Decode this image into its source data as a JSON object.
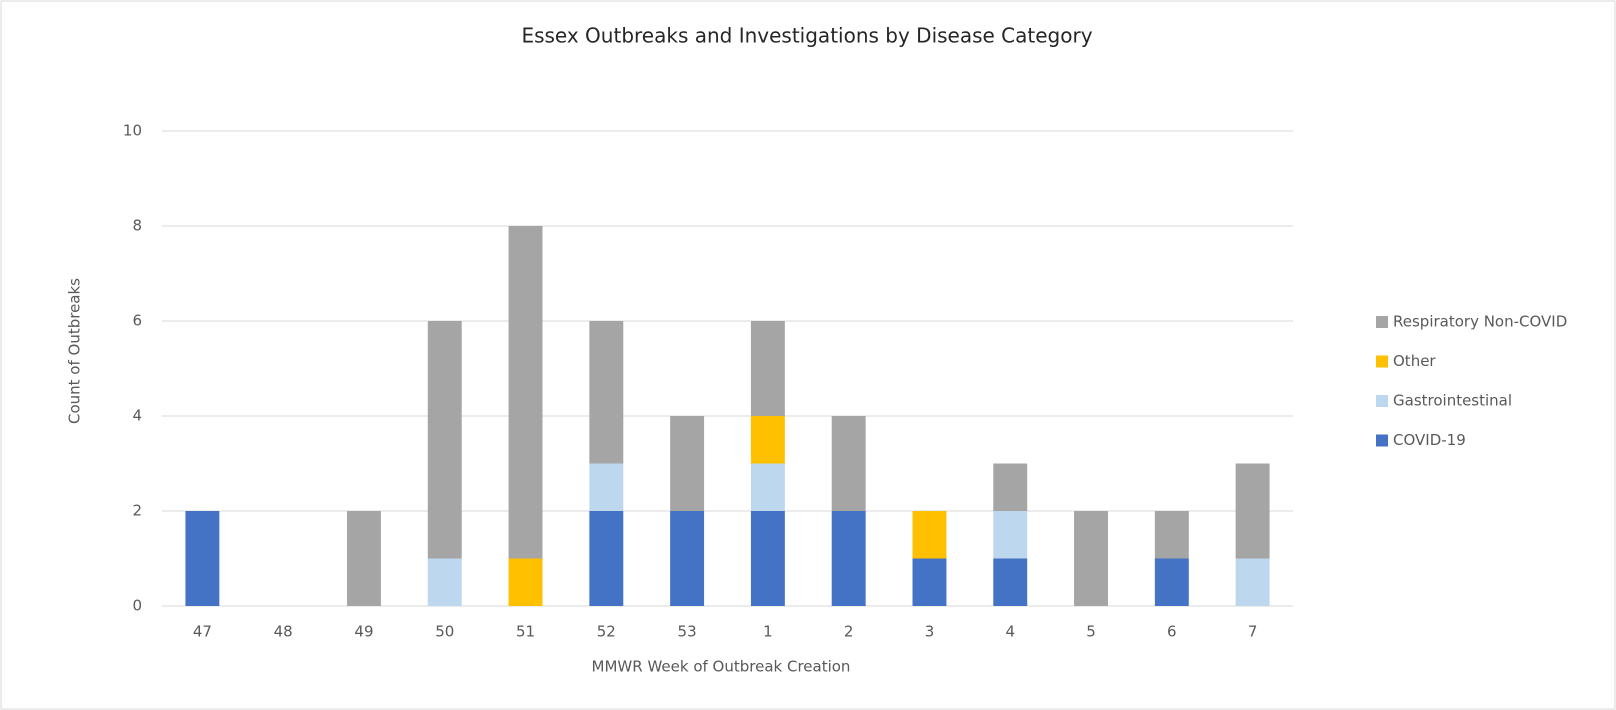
{
  "chart_data": {
    "type": "bar",
    "stacked": true,
    "title": "Essex Outbreaks and Investigations by Disease Category",
    "x_label": "MMWR Week of Outbreak Creation",
    "y_label": "Count of Outbreaks",
    "categories": [
      "47",
      "48",
      "49",
      "50",
      "51",
      "52",
      "53",
      "1",
      "2",
      "3",
      "4",
      "5",
      "6",
      "7"
    ],
    "series": [
      {
        "name": "COVID-19",
        "color": "#4472c4",
        "values": [
          2,
          0,
          0,
          0,
          0,
          2,
          2,
          2,
          2,
          1,
          1,
          0,
          1,
          0
        ]
      },
      {
        "name": "Gastrointestinal",
        "color": "#bdd7ee",
        "values": [
          0,
          0,
          0,
          1,
          0,
          1,
          0,
          1,
          0,
          0,
          1,
          0,
          0,
          1
        ]
      },
      {
        "name": "Other",
        "color": "#ffc000",
        "values": [
          0,
          0,
          0,
          0,
          1,
          0,
          0,
          1,
          0,
          1,
          0,
          0,
          0,
          0
        ]
      },
      {
        "name": "Respiratory Non-COVID",
        "color": "#a5a5a5",
        "values": [
          0,
          0,
          2,
          5,
          7,
          3,
          2,
          2,
          2,
          0,
          1,
          2,
          1,
          2
        ]
      }
    ],
    "ylim": [
      0,
      10
    ],
    "yticks": [
      0,
      2,
      4,
      6,
      8,
      10
    ],
    "grid": true,
    "legend": "right"
  }
}
